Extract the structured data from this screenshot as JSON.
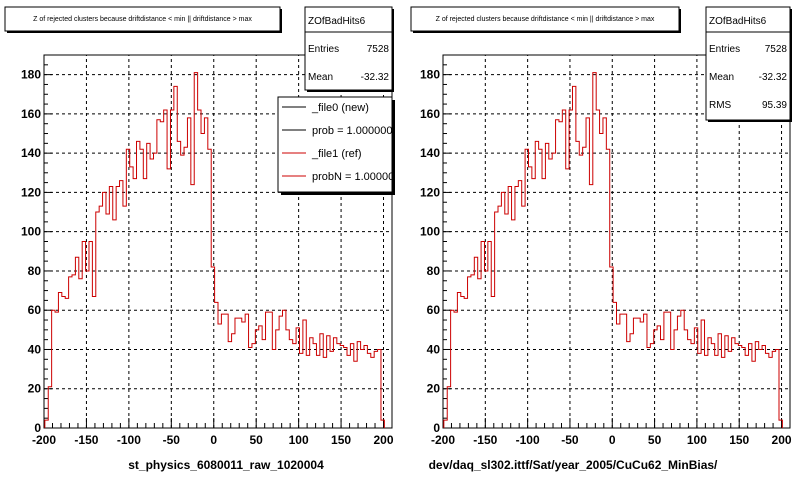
{
  "chart_data": [
    {
      "type": "histogram",
      "title": "Z of rejected clusters because driftdistance < min || driftdistance > max",
      "xlabel": "st_physics_6080011_raw_1020004",
      "ylabel": "",
      "xlim": [
        -200,
        210
      ],
      "ylim": [
        0,
        190
      ],
      "yticks": [
        0,
        20,
        40,
        60,
        80,
        100,
        120,
        140,
        160,
        180
      ],
      "xticks": [
        -200,
        -150,
        -100,
        -50,
        0,
        50,
        100,
        150,
        200
      ],
      "grid": true,
      "stats": {
        "name": "ZOfBadHits6",
        "rows": [
          {
            "label": "Entries",
            "value": "7528"
          },
          {
            "label": "Mean",
            "value": "-32.32"
          }
        ]
      },
      "legend": {
        "placement": "top-right",
        "entries": [
          {
            "label": "_file0 (new)",
            "color": "#000000"
          },
          {
            "label": "prob = 1.000000",
            "color": "#000000"
          },
          {
            "label": "_file1 (ref)",
            "color": "#cc0000"
          },
          {
            "label": "probN = 1.000000",
            "color": "#cc0000"
          }
        ]
      },
      "series": [
        {
          "color": "#cc0000",
          "bin_width": 4,
          "x": [
            -197,
            -193,
            -189,
            -185,
            -181,
            -177,
            -173,
            -169,
            -165,
            -161,
            -157,
            -153,
            -149,
            -145,
            -141,
            -137,
            -133,
            -129,
            -125,
            -121,
            -117,
            -113,
            -109,
            -105,
            -101,
            -97,
            -93,
            -89,
            -85,
            -81,
            -77,
            -73,
            -69,
            -65,
            -61,
            -57,
            -53,
            -49,
            -45,
            -41,
            -37,
            -33,
            -29,
            -25,
            -21,
            -17,
            -13,
            -9,
            -5,
            -1,
            3,
            7,
            11,
            15,
            19,
            23,
            27,
            31,
            35,
            39,
            43,
            47,
            51,
            55,
            59,
            63,
            67,
            71,
            75,
            79,
            83,
            87,
            91,
            95,
            99,
            103,
            107,
            111,
            115,
            119,
            123,
            127,
            131,
            135,
            139,
            143,
            147,
            151,
            155,
            159,
            163,
            167,
            171,
            175,
            179,
            183,
            187,
            191,
            195,
            199
          ],
          "values": [
            4,
            21,
            60,
            59,
            69,
            67,
            66,
            77,
            78,
            87,
            76,
            95,
            80,
            95,
            67,
            110,
            113,
            120,
            109,
            123,
            106,
            123,
            126,
            113,
            142,
            133,
            127,
            146,
            142,
            127,
            145,
            137,
            140,
            157,
            156,
            162,
            132,
            162,
            174,
            146,
            139,
            143,
            158,
            124,
            181,
            162,
            150,
            158,
            142,
            82,
            64,
            53,
            58,
            58,
            44,
            48,
            56,
            56,
            54,
            58,
            41,
            43,
            50,
            52,
            45,
            59,
            59,
            40,
            50,
            57,
            60,
            50,
            45,
            43,
            51,
            38,
            55,
            37,
            46,
            43,
            37,
            48,
            36,
            47,
            39,
            46,
            43,
            42,
            41,
            37,
            43,
            34,
            44,
            40,
            42,
            38,
            36,
            39,
            40,
            4
          ]
        }
      ]
    },
    {
      "type": "histogram",
      "title": "Z of rejected clusters because driftdistance < min || driftdistance > max",
      "xlabel": "dev/daq_sl302.ittf/Sat/year_2005/CuCu62_MinBias/",
      "ylabel": "",
      "xlim": [
        -200,
        210
      ],
      "ylim": [
        0,
        190
      ],
      "yticks": [
        0,
        20,
        40,
        60,
        80,
        100,
        120,
        140,
        160,
        180
      ],
      "xticks": [
        -200,
        -150,
        -100,
        -50,
        0,
        50,
        100,
        150,
        200
      ],
      "grid": true,
      "stats": {
        "name": "ZOfBadHits6",
        "rows": [
          {
            "label": "Entries",
            "value": "7528"
          },
          {
            "label": "Mean",
            "value": "-32.32"
          },
          {
            "label": "RMS",
            "value": "95.39"
          }
        ]
      },
      "series": [
        {
          "color": "#cc0000",
          "bin_width": 4,
          "x": [
            -197,
            -193,
            -189,
            -185,
            -181,
            -177,
            -173,
            -169,
            -165,
            -161,
            -157,
            -153,
            -149,
            -145,
            -141,
            -137,
            -133,
            -129,
            -125,
            -121,
            -117,
            -113,
            -109,
            -105,
            -101,
            -97,
            -93,
            -89,
            -85,
            -81,
            -77,
            -73,
            -69,
            -65,
            -61,
            -57,
            -53,
            -49,
            -45,
            -41,
            -37,
            -33,
            -29,
            -25,
            -21,
            -17,
            -13,
            -9,
            -5,
            -1,
            3,
            7,
            11,
            15,
            19,
            23,
            27,
            31,
            35,
            39,
            43,
            47,
            51,
            55,
            59,
            63,
            67,
            71,
            75,
            79,
            83,
            87,
            91,
            95,
            99,
            103,
            107,
            111,
            115,
            119,
            123,
            127,
            131,
            135,
            139,
            143,
            147,
            151,
            155,
            159,
            163,
            167,
            171,
            175,
            179,
            183,
            187,
            191,
            195,
            199
          ],
          "values": [
            4,
            21,
            60,
            59,
            69,
            67,
            66,
            77,
            78,
            87,
            76,
            95,
            80,
            95,
            67,
            110,
            113,
            120,
            109,
            123,
            106,
            123,
            126,
            113,
            142,
            133,
            127,
            146,
            142,
            127,
            145,
            137,
            140,
            157,
            156,
            162,
            132,
            162,
            174,
            146,
            139,
            143,
            158,
            124,
            181,
            162,
            150,
            158,
            142,
            82,
            64,
            53,
            58,
            58,
            44,
            48,
            56,
            56,
            54,
            58,
            41,
            43,
            50,
            52,
            45,
            59,
            59,
            40,
            50,
            57,
            60,
            50,
            45,
            43,
            51,
            38,
            55,
            37,
            46,
            43,
            37,
            48,
            36,
            47,
            39,
            46,
            43,
            42,
            41,
            37,
            43,
            34,
            44,
            40,
            42,
            38,
            36,
            39,
            40,
            4
          ]
        }
      ]
    }
  ]
}
